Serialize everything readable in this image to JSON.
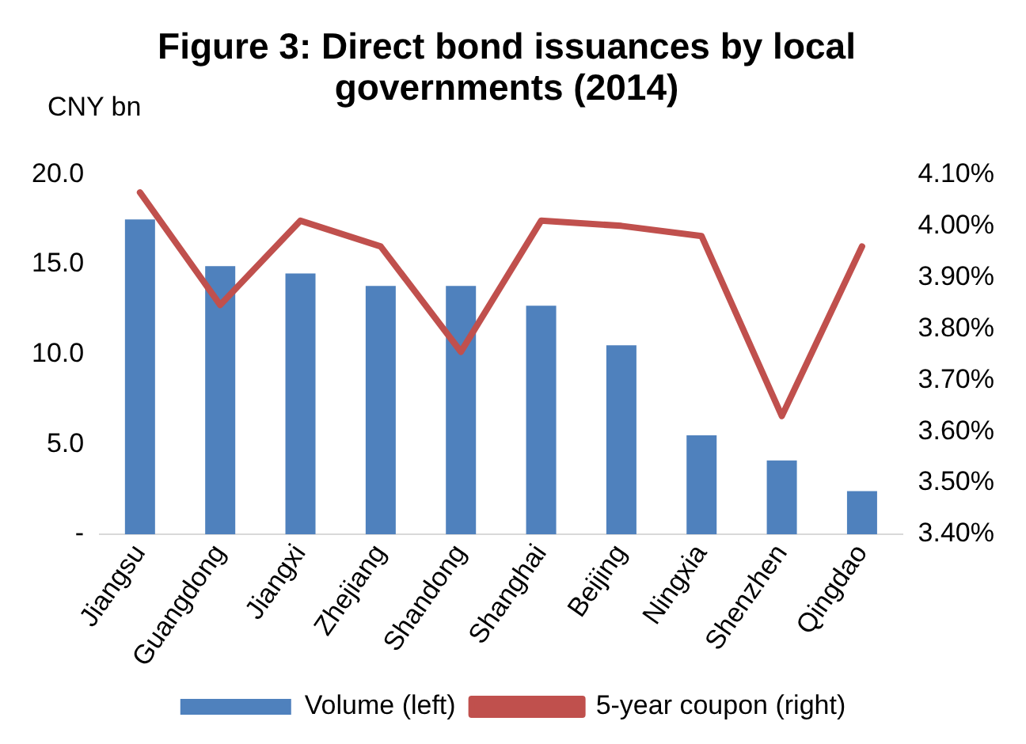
{
  "chart_data": {
    "type": "bar",
    "title": "Figure 3: Direct bond issuances by local governments (2014)",
    "ylabel": "CNY bn",
    "categories": [
      "Jiangsu",
      "Guangdong",
      "Jiangxi",
      "Zhejiang",
      "Shandong",
      "Shanghai",
      "Beijing",
      "Ningxia",
      "Shenzhen",
      "Qingdao"
    ],
    "series": [
      {
        "name": "Volume (left)",
        "color": "#4f81bd",
        "values": [
          17.5,
          14.9,
          14.5,
          13.8,
          13.8,
          12.7,
          10.5,
          5.5,
          4.1,
          2.4
        ]
      },
      {
        "name": "5-year coupon (right)",
        "type": "line",
        "axis": "y2",
        "color": "#c0504d",
        "values": [
          4.065,
          3.846,
          4.01,
          3.96,
          3.755,
          4.01,
          4.0,
          3.98,
          3.63,
          3.96
        ]
      }
    ],
    "ylim": [
      0,
      20
    ],
    "yticks": [
      {
        "value": 0,
        "label": "-"
      },
      {
        "value": 5,
        "label": "5.0"
      },
      {
        "value": 10,
        "label": "10.0"
      },
      {
        "value": 15,
        "label": "15.0"
      },
      {
        "value": 20,
        "label": "20.0"
      }
    ],
    "y2lim": [
      3.4,
      4.1
    ],
    "y2ticks": [
      {
        "value": 3.4,
        "label": "3.40%"
      },
      {
        "value": 3.5,
        "label": "3.50%"
      },
      {
        "value": 3.6,
        "label": "3.60%"
      },
      {
        "value": 3.7,
        "label": "3.70%"
      },
      {
        "value": 3.8,
        "label": "3.80%"
      },
      {
        "value": 3.9,
        "label": "3.90%"
      },
      {
        "value": 4.0,
        "label": "4.00%"
      },
      {
        "value": 4.1,
        "label": "4.10%"
      }
    ],
    "grid": false,
    "legend": "bottom",
    "marker": "none"
  }
}
